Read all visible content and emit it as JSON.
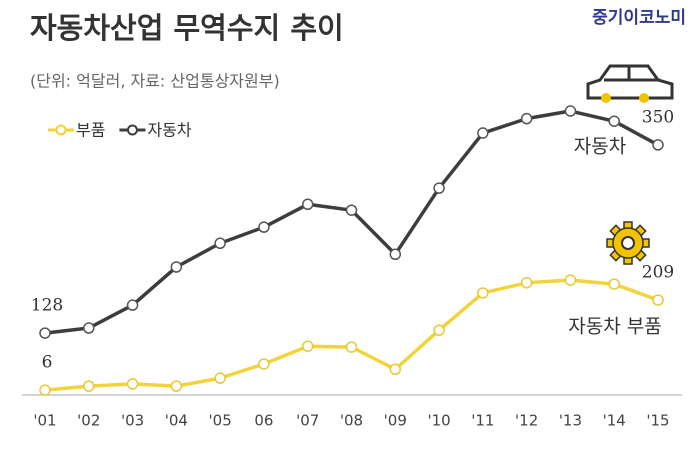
{
  "chart_data": {
    "type": "line",
    "title": "자동차산업 무역수지 추이",
    "subtitle": "(단위: 억달러, 자료: 산업통상자원부)",
    "brand": "중기이코노미",
    "categories": [
      "'01",
      "'02",
      "'03",
      "'04",
      "'05",
      "06",
      "'07",
      "'08",
      "'09",
      "'10",
      "'11",
      "'12",
      "'13",
      "'14",
      "'15"
    ],
    "series": [
      {
        "name": "부품",
        "color": "#f2d33a",
        "axis": "y2",
        "values": [
          6,
          15,
          20,
          15,
          33,
          65,
          105,
          103,
          53,
          141,
          225,
          248,
          254,
          245,
          209
        ],
        "value_labels": [
          "6",
          null,
          null,
          null,
          null,
          null,
          null,
          null,
          null,
          null,
          null,
          null,
          null,
          null,
          "209"
        ]
      },
      {
        "name": "자동차",
        "color": "#3d3d3d",
        "values": [
          128,
          134,
          161,
          206,
          234,
          253,
          280,
          273,
          221,
          299,
          364,
          381,
          390,
          378,
          350
        ],
        "value_labels": [
          "128",
          null,
          null,
          null,
          null,
          null,
          null,
          null,
          null,
          null,
          null,
          null,
          null,
          null,
          "350"
        ]
      }
    ],
    "annotations": [
      "자동차",
      "자동차 부품"
    ],
    "ylim": [
      55,
      403
    ],
    "y2lim": [
      -5,
      660
    ]
  }
}
